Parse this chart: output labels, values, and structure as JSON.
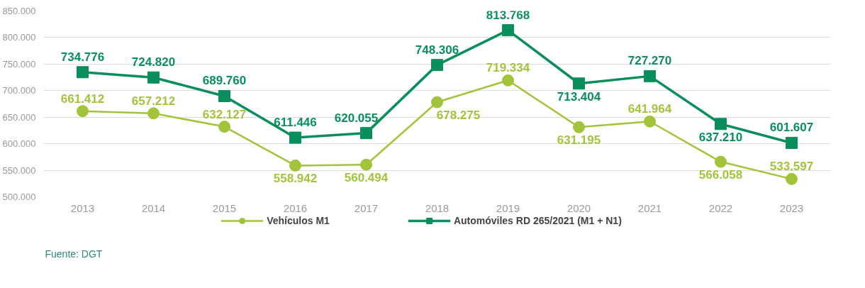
{
  "chart_data": {
    "type": "line",
    "categories": [
      "2013",
      "2014",
      "2015",
      "2016",
      "2017",
      "2018",
      "2019",
      "2020",
      "2021",
      "2022",
      "2023"
    ],
    "series": [
      {
        "name": "Vehículos M1",
        "color": "#a2c43a",
        "marker": "circle",
        "values": [
          661412,
          657212,
          632127,
          558942,
          560494,
          678275,
          719334,
          631195,
          641964,
          566058,
          533597
        ],
        "value_labels": [
          "661.412",
          "657.212",
          "632.127",
          "558.942",
          "560.494",
          "678.275",
          "719.334",
          "631.195",
          "641.964",
          "566.058",
          "533.597"
        ]
      },
      {
        "name": "Automóviles RD 265/2021 (M1 + N1)",
        "color": "#0a8f5c",
        "marker": "square",
        "values": [
          734776,
          724820,
          689760,
          611446,
          620055,
          748306,
          813768,
          713404,
          727270,
          637210,
          601607
        ],
        "value_labels": [
          "734.776",
          "724.820",
          "689.760",
          "611.446",
          "620.055",
          "748.306",
          "813.768",
          "713.404",
          "727.270",
          "637.210",
          "601.607"
        ]
      }
    ],
    "ylim": [
      500000,
      850000
    ],
    "yticks": [
      {
        "value": 500000,
        "label": "500.000"
      },
      {
        "value": 550000,
        "label": "550.000"
      },
      {
        "value": 600000,
        "label": "600.000"
      },
      {
        "value": 650000,
        "label": "650.000"
      },
      {
        "value": 700000,
        "label": "700.000"
      },
      {
        "value": 750000,
        "label": "750.000"
      },
      {
        "value": 800000,
        "label": "800.000"
      },
      {
        "value": 850000,
        "label": "850.000"
      }
    ],
    "grid": "y",
    "legend": "bottom",
    "line_style": "solid",
    "annotations": [
      "Fuente: DGT"
    ]
  }
}
